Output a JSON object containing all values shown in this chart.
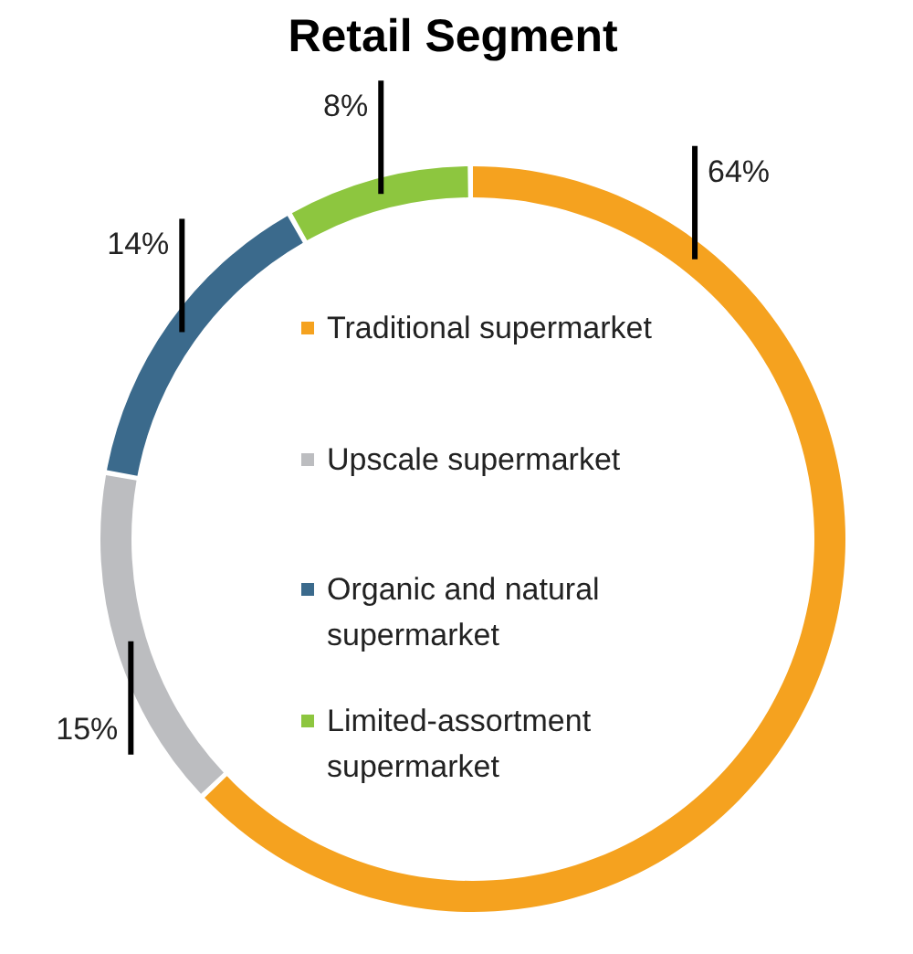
{
  "chart_data": {
    "type": "donut",
    "title": "Retail Segment",
    "categories": [
      "Traditional supermarket",
      "Upscale supermarket",
      "Organic and natural supermarket",
      "Limited-assortment supermarket"
    ],
    "values": [
      64,
      15,
      14,
      8
    ],
    "colors": [
      "#f5a21f",
      "#bcbdc0",
      "#3b6a8c",
      "#8dc63f"
    ],
    "value_labels": [
      "64%",
      "15%",
      "14%",
      "8%"
    ],
    "legend": "center"
  }
}
